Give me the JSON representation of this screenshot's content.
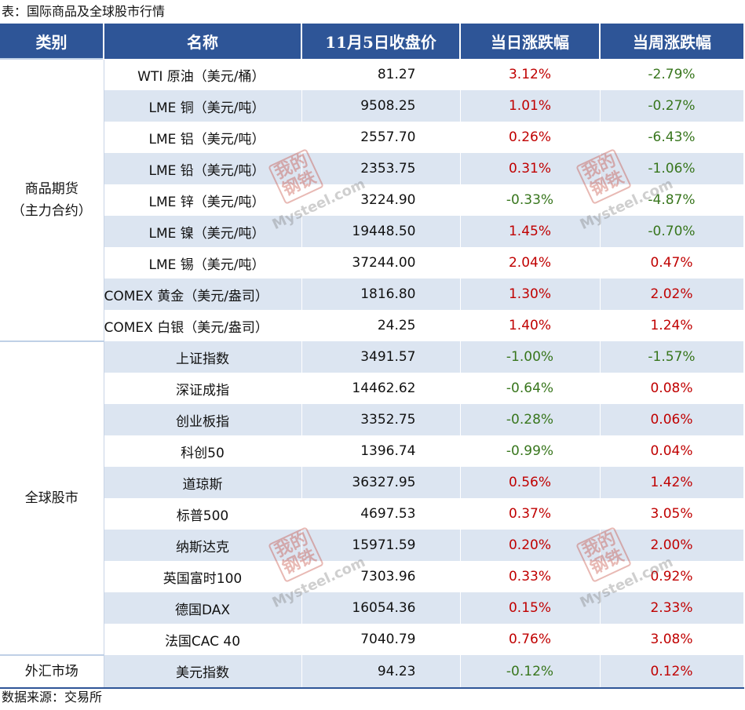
{
  "caption": "表：国际商品及全球股市行情",
  "source": "数据来源：交易所",
  "watermark": {
    "logo_text": "我的钢铁",
    "site_text": "Mysteel.com"
  },
  "header": [
    "类别",
    "名称",
    "11月5日收盘价",
    "当日涨跌幅",
    "当周涨跌幅"
  ],
  "groups": [
    {
      "label": "商品期货\n（主力合约）",
      "rows": [
        {
          "name": "WTI 原油（美元/桶）",
          "price": "81.27",
          "day": "3.12%",
          "week": "-2.79%"
        },
        {
          "name": "LME 铜（美元/吨）",
          "price": "9508.25",
          "day": "1.01%",
          "week": "-0.27%"
        },
        {
          "name": "LME 铝（美元/吨）",
          "price": "2557.70",
          "day": "0.26%",
          "week": "-6.43%"
        },
        {
          "name": "LME 铅（美元/吨）",
          "price": "2353.75",
          "day": "0.31%",
          "week": "-1.06%"
        },
        {
          "name": "LME 锌（美元/吨）",
          "price": "3224.90",
          "day": "-0.33%",
          "week": "-4.87%"
        },
        {
          "name": "LME 镍（美元/吨）",
          "price": "19448.50",
          "day": "1.45%",
          "week": "-0.70%"
        },
        {
          "name": "LME 锡（美元/吨）",
          "price": "37244.00",
          "day": "2.04%",
          "week": "0.47%"
        },
        {
          "name": "COMEX 黄金（美元/盎司）",
          "price": "1816.80",
          "day": "1.30%",
          "week": "2.02%"
        },
        {
          "name": "COMEX 白银（美元/盎司）",
          "price": "24.25",
          "day": "1.40%",
          "week": "1.24%"
        }
      ]
    },
    {
      "label": "全球股市",
      "rows": [
        {
          "name": "上证指数",
          "price": "3491.57",
          "day": "-1.00%",
          "week": "-1.57%"
        },
        {
          "name": "深证成指",
          "price": "14462.62",
          "day": "-0.64%",
          "week": "0.08%"
        },
        {
          "name": "创业板指",
          "price": "3352.75",
          "day": "-0.28%",
          "week": "0.06%"
        },
        {
          "name": "科创50",
          "price": "1396.74",
          "day": "-0.99%",
          "week": "0.04%"
        },
        {
          "name": "道琼斯",
          "price": "36327.95",
          "day": "0.56%",
          "week": "1.42%"
        },
        {
          "name": "标普500",
          "price": "4697.53",
          "day": "0.37%",
          "week": "3.05%"
        },
        {
          "name": "纳斯达克",
          "price": "15971.59",
          "day": "0.20%",
          "week": "2.00%"
        },
        {
          "name": "英国富时100",
          "price": "7303.96",
          "day": "0.33%",
          "week": "0.92%"
        },
        {
          "name": "德国DAX",
          "price": "16054.36",
          "day": "0.15%",
          "week": "2.33%"
        },
        {
          "name": "法国CAC 40",
          "price": "7040.79",
          "day": "0.76%",
          "week": "3.08%"
        }
      ]
    },
    {
      "label": "外汇市场",
      "rows": [
        {
          "name": "美元指数",
          "price": "94.23",
          "day": "-0.12%",
          "week": "0.12%"
        }
      ]
    }
  ],
  "colors": {
    "header_bg": "#2E5597",
    "row_alt": "#DCE5F1",
    "up": "#C00000",
    "down": "#38761D"
  }
}
